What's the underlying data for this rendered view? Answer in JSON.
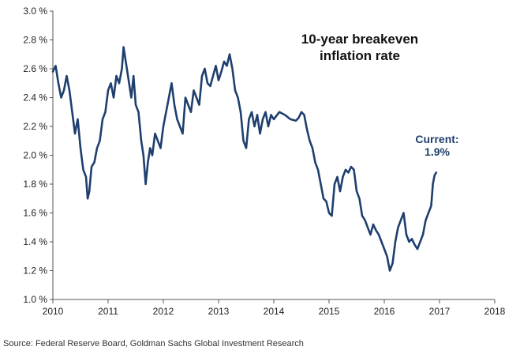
{
  "chart_data": {
    "type": "line",
    "title_lines": [
      "10-year breakeven",
      "inflation rate"
    ],
    "xlabel": "",
    "ylabel": "",
    "xlim": [
      2010,
      2018
    ],
    "ylim": [
      1.0,
      3.0
    ],
    "x_ticks": [
      2010,
      2011,
      2012,
      2013,
      2014,
      2015,
      2016,
      2017,
      2018
    ],
    "x_tick_labels": [
      "2010",
      "2011",
      "2012",
      "2013",
      "2014",
      "2015",
      "2016",
      "2017",
      "2018"
    ],
    "y_ticks": [
      1.0,
      1.2,
      1.4,
      1.6,
      1.8,
      2.0,
      2.2,
      2.4,
      2.6,
      2.8,
      3.0
    ],
    "y_tick_labels": [
      "1.0 %",
      "1.2 %",
      "1.4 %",
      "1.6 %",
      "1.8 %",
      "2.0 %",
      "2.2 %",
      "2.4 %",
      "2.6 %",
      "2.8 %",
      "3.0 %"
    ],
    "grid": false,
    "line_color": "#1f3f6e",
    "annotation": {
      "label": "Current:",
      "value": "1.9%"
    },
    "series": [
      {
        "name": "10-year breakeven inflation rate",
        "x": [
          2010.0,
          2010.05,
          2010.1,
          2010.15,
          2010.2,
          2010.25,
          2010.3,
          2010.35,
          2010.4,
          2010.45,
          2010.5,
          2010.55,
          2010.6,
          2010.63,
          2010.66,
          2010.7,
          2010.75,
          2010.8,
          2010.85,
          2010.9,
          2010.95,
          2011.0,
          2011.05,
          2011.1,
          2011.15,
          2011.2,
          2011.25,
          2011.28,
          2011.32,
          2011.38,
          2011.42,
          2011.46,
          2011.5,
          2011.55,
          2011.6,
          2011.64,
          2011.68,
          2011.72,
          2011.76,
          2011.8,
          2011.85,
          2011.9,
          2011.95,
          2012.0,
          2012.05,
          2012.1,
          2012.15,
          2012.2,
          2012.25,
          2012.3,
          2012.35,
          2012.4,
          2012.45,
          2012.5,
          2012.55,
          2012.6,
          2012.65,
          2012.7,
          2012.75,
          2012.8,
          2012.85,
          2012.9,
          2012.95,
          2013.0,
          2013.05,
          2013.1,
          2013.15,
          2013.2,
          2013.25,
          2013.3,
          2013.35,
          2013.4,
          2013.45,
          2013.5,
          2013.55,
          2013.6,
          2013.65,
          2013.7,
          2013.75,
          2013.8,
          2013.85,
          2013.9,
          2013.95,
          2014.0,
          2014.1,
          2014.2,
          2014.3,
          2014.4,
          2014.45,
          2014.5,
          2014.55,
          2014.6,
          2014.65,
          2014.7,
          2014.75,
          2014.8,
          2014.85,
          2014.9,
          2014.95,
          2015.0,
          2015.05,
          2015.1,
          2015.15,
          2015.2,
          2015.25,
          2015.3,
          2015.35,
          2015.4,
          2015.45,
          2015.5,
          2015.55,
          2015.6,
          2015.65,
          2015.7,
          2015.75,
          2015.8,
          2015.85,
          2015.9,
          2015.95,
          2016.0,
          2016.05,
          2016.1,
          2016.15,
          2016.2,
          2016.25,
          2016.3,
          2016.35,
          2016.4,
          2016.45,
          2016.5,
          2016.55,
          2016.6,
          2016.65,
          2016.7,
          2016.75,
          2016.8,
          2016.85,
          2016.88,
          2016.91,
          2016.94
        ],
        "values": [
          2.58,
          2.62,
          2.5,
          2.4,
          2.45,
          2.55,
          2.45,
          2.3,
          2.15,
          2.25,
          2.05,
          1.9,
          1.85,
          1.7,
          1.75,
          1.92,
          1.95,
          2.05,
          2.1,
          2.25,
          2.3,
          2.45,
          2.5,
          2.4,
          2.55,
          2.5,
          2.6,
          2.75,
          2.65,
          2.5,
          2.4,
          2.55,
          2.35,
          2.3,
          2.1,
          2.0,
          1.8,
          1.95,
          2.05,
          2.0,
          2.15,
          2.1,
          2.05,
          2.2,
          2.3,
          2.4,
          2.5,
          2.35,
          2.25,
          2.2,
          2.15,
          2.4,
          2.35,
          2.3,
          2.45,
          2.4,
          2.35,
          2.55,
          2.6,
          2.5,
          2.48,
          2.55,
          2.62,
          2.52,
          2.58,
          2.65,
          2.62,
          2.7,
          2.6,
          2.45,
          2.4,
          2.3,
          2.1,
          2.05,
          2.25,
          2.3,
          2.2,
          2.28,
          2.15,
          2.25,
          2.3,
          2.2,
          2.28,
          2.25,
          2.3,
          2.28,
          2.25,
          2.24,
          2.26,
          2.3,
          2.28,
          2.18,
          2.1,
          2.05,
          1.95,
          1.9,
          1.8,
          1.7,
          1.68,
          1.6,
          1.58,
          1.8,
          1.85,
          1.75,
          1.85,
          1.9,
          1.88,
          1.92,
          1.9,
          1.75,
          1.7,
          1.58,
          1.55,
          1.5,
          1.45,
          1.52,
          1.48,
          1.45,
          1.4,
          1.35,
          1.3,
          1.2,
          1.25,
          1.4,
          1.5,
          1.55,
          1.6,
          1.45,
          1.4,
          1.42,
          1.38,
          1.35,
          1.4,
          1.45,
          1.55,
          1.6,
          1.65,
          1.8,
          1.86,
          1.88
        ]
      }
    ]
  },
  "source": "Source: Federal Reserve Board, Goldman Sachs Global Investment Research"
}
